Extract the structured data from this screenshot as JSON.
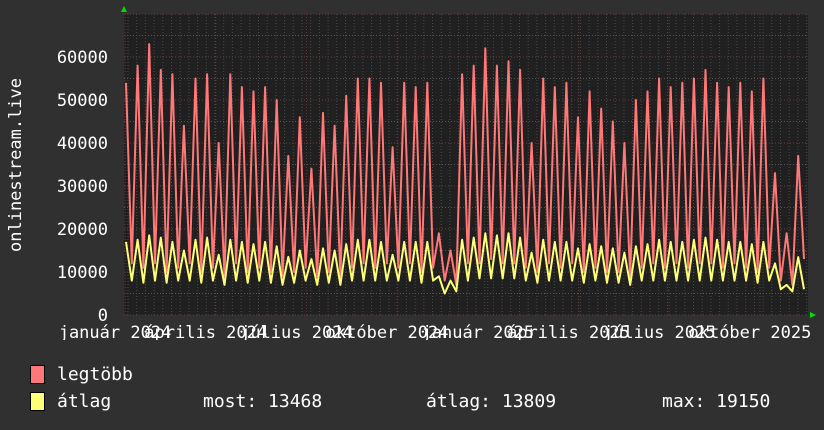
{
  "chart_data": {
    "type": "line",
    "ylabel": "onlinestream.live",
    "ylim": [
      0,
      70000
    ],
    "yticks": [
      0,
      10000,
      20000,
      30000,
      40000,
      50000,
      60000
    ],
    "ytick_labels": [
      "0",
      "10000",
      "20000",
      "30000",
      "40000",
      "50000",
      "60000"
    ],
    "xtick_labels": [
      "január 2024",
      "április 2024",
      "július 2024",
      "október 2024",
      "január 2025",
      "április 2025",
      "július 2025",
      "október 2025"
    ],
    "grid": true,
    "series": [
      {
        "name": "legtöbb",
        "color": "#ff7777",
        "values": [
          54000,
          12000,
          58000,
          11000,
          63000,
          12000,
          57000,
          10000,
          56000,
          11000,
          44000,
          12000,
          55000,
          10000,
          56000,
          11000,
          40000,
          9000,
          56000,
          12000,
          53000,
          10000,
          52000,
          11000,
          53000,
          10000,
          50000,
          9000,
          37000,
          10000,
          46000,
          11000,
          34000,
          9000,
          47000,
          10000,
          44000,
          9000,
          51000,
          11000,
          55000,
          12000,
          55000,
          11000,
          54000,
          12000,
          39000,
          11000,
          54000,
          12000,
          53000,
          10000,
          54000,
          11000,
          19000,
          8000,
          15000,
          7000,
          56000,
          12000,
          58000,
          12000,
          62000,
          13000,
          58000,
          12000,
          59000,
          12000,
          57000,
          11000,
          40000,
          10000,
          55000,
          12000,
          53000,
          11000,
          54000,
          12000,
          46000,
          10000,
          52000,
          11000,
          48000,
          10000,
          45000,
          10000,
          40000,
          9000,
          50000,
          11000,
          52000,
          12000,
          55000,
          11000,
          53000,
          12000,
          54000,
          11000,
          55000,
          12000,
          57000,
          12000,
          54000,
          11000,
          53000,
          12000,
          54000,
          11000,
          52000,
          10000,
          55000,
          11000,
          33000,
          8000,
          19000,
          7000,
          37000,
          13000
        ]
      },
      {
        "name": "átlag",
        "color": "#ffff77",
        "values": [
          17000,
          8000,
          17500,
          7500,
          18500,
          8000,
          18000,
          7500,
          17000,
          8000,
          15000,
          8000,
          17500,
          7500,
          18000,
          8000,
          14000,
          7000,
          17500,
          8000,
          17000,
          7500,
          16500,
          8000,
          17000,
          7500,
          16000,
          7000,
          13500,
          7500,
          15000,
          8000,
          13000,
          7000,
          15500,
          7500,
          15000,
          7000,
          16500,
          8000,
          17500,
          8000,
          17500,
          8000,
          17000,
          8000,
          14000,
          8000,
          17000,
          8000,
          17000,
          7500,
          17000,
          8000,
          9000,
          5000,
          8000,
          5500,
          17500,
          8000,
          18000,
          8500,
          19000,
          8500,
          18500,
          8500,
          19000,
          8500,
          18000,
          8000,
          14500,
          7500,
          17500,
          8000,
          17000,
          8000,
          17000,
          8000,
          15500,
          7500,
          16500,
          8000,
          16000,
          7500,
          15500,
          7500,
          14500,
          7000,
          16000,
          8000,
          16500,
          8000,
          17500,
          8000,
          17000,
          8000,
          17000,
          8000,
          17500,
          8000,
          18000,
          8000,
          17500,
          8000,
          17000,
          8000,
          17000,
          8000,
          16500,
          7500,
          17000,
          8000,
          12000,
          6000,
          7000,
          5500,
          13468,
          6000
        ]
      }
    ]
  },
  "legend": {
    "max_label": "legtöbb",
    "avg_label": "átlag",
    "current": "most: 13468",
    "average": "átlag: 13809",
    "maximum": "max: 19150"
  }
}
